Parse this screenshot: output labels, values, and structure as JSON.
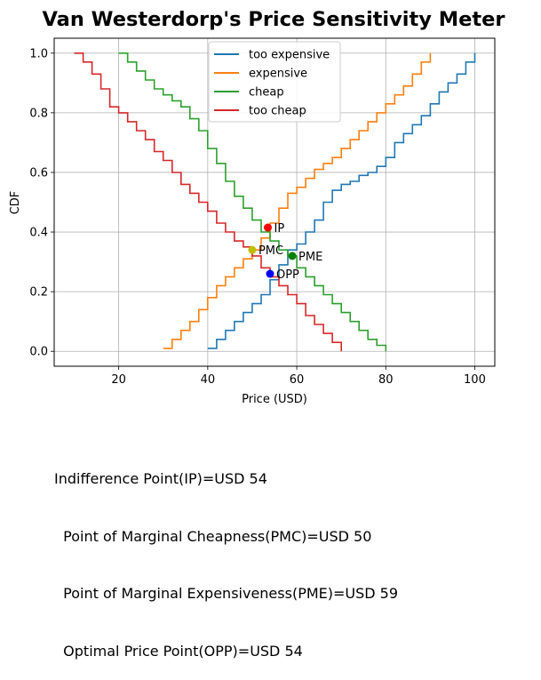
{
  "chart_data": {
    "type": "line",
    "title": "Van Westerdorp's Price Sensitivity Meter",
    "xlabel": "Price (USD)",
    "ylabel": "CDF",
    "xlim": [
      5.5,
      104.5
    ],
    "ylim": [
      -0.05,
      1.05
    ],
    "xticks": [
      20,
      40,
      60,
      80,
      100
    ],
    "yticks": [
      0.0,
      0.2,
      0.4,
      0.6,
      0.8,
      1.0
    ],
    "grid": true,
    "legend_position": "top-center",
    "series": [
      {
        "name": "too expensive",
        "color": "#1f77b4",
        "step": true,
        "x": [
          40,
          42,
          44,
          46,
          48,
          50,
          52,
          54,
          56,
          58,
          60,
          62,
          64,
          66,
          68,
          70,
          72,
          74,
          76,
          78,
          80,
          82,
          84,
          86,
          88,
          90,
          92,
          94,
          96,
          98,
          100
        ],
        "y": [
          0.01,
          0.04,
          0.07,
          0.1,
          0.13,
          0.16,
          0.19,
          0.24,
          0.29,
          0.34,
          0.36,
          0.4,
          0.44,
          0.5,
          0.54,
          0.56,
          0.57,
          0.59,
          0.6,
          0.62,
          0.65,
          0.7,
          0.73,
          0.76,
          0.79,
          0.83,
          0.87,
          0.9,
          0.93,
          0.97,
          1.0
        ]
      },
      {
        "name": "expensive",
        "color": "#ff7f0e",
        "step": true,
        "x": [
          30,
          32,
          34,
          36,
          38,
          40,
          42,
          44,
          46,
          48,
          50,
          52,
          54,
          56,
          58,
          60,
          62,
          64,
          66,
          68,
          70,
          72,
          74,
          76,
          78,
          80,
          82,
          84,
          86,
          88,
          90
        ],
        "y": [
          0.01,
          0.04,
          0.07,
          0.1,
          0.14,
          0.18,
          0.22,
          0.25,
          0.28,
          0.31,
          0.34,
          0.38,
          0.43,
          0.48,
          0.53,
          0.55,
          0.58,
          0.61,
          0.63,
          0.65,
          0.68,
          0.71,
          0.74,
          0.77,
          0.8,
          0.83,
          0.86,
          0.89,
          0.93,
          0.97,
          1.0
        ]
      },
      {
        "name": "cheap",
        "color": "#2ca02c",
        "step": true,
        "x": [
          20,
          22,
          24,
          26,
          28,
          30,
          32,
          34,
          36,
          38,
          40,
          42,
          44,
          46,
          48,
          50,
          52,
          54,
          56,
          58,
          60,
          62,
          64,
          66,
          68,
          70,
          72,
          74,
          76,
          78,
          80
        ],
        "y": [
          1.0,
          0.97,
          0.94,
          0.91,
          0.88,
          0.86,
          0.84,
          0.82,
          0.78,
          0.74,
          0.68,
          0.63,
          0.57,
          0.52,
          0.48,
          0.44,
          0.4,
          0.37,
          0.34,
          0.32,
          0.28,
          0.25,
          0.22,
          0.19,
          0.16,
          0.13,
          0.1,
          0.07,
          0.04,
          0.02,
          0.0
        ]
      },
      {
        "name": "too cheap",
        "color": "#d62728",
        "step": true,
        "x": [
          10,
          12,
          14,
          16,
          18,
          20,
          22,
          24,
          26,
          28,
          30,
          32,
          34,
          36,
          38,
          40,
          42,
          44,
          46,
          48,
          50,
          52,
          54,
          56,
          58,
          60,
          62,
          64,
          66,
          68,
          70
        ],
        "y": [
          1.0,
          0.97,
          0.93,
          0.88,
          0.82,
          0.8,
          0.77,
          0.74,
          0.71,
          0.67,
          0.64,
          0.6,
          0.56,
          0.53,
          0.5,
          0.47,
          0.43,
          0.4,
          0.37,
          0.35,
          0.32,
          0.28,
          0.25,
          0.22,
          0.19,
          0.16,
          0.12,
          0.09,
          0.06,
          0.03,
          0.0
        ]
      }
    ],
    "points": [
      {
        "label": "IP",
        "x": 53.5,
        "y": 0.415,
        "color": "#ff0000"
      },
      {
        "label": "PMC",
        "x": 50,
        "y": 0.34,
        "color": "#bfbf00"
      },
      {
        "label": "PME",
        "x": 59,
        "y": 0.32,
        "color": "#008000"
      },
      {
        "label": "OPP",
        "x": 54,
        "y": 0.26,
        "color": "#0000ff"
      }
    ]
  },
  "summary": {
    "line1": "Indifference Point(IP)=USD 54",
    "line2": "  Point of Marginal Cheapness(PMC)=USD 50",
    "line3": "  Point of Marginal Expensiveness(PME)=USD 59",
    "line4": "  Optimal Price Point(OPP)=USD 54"
  }
}
